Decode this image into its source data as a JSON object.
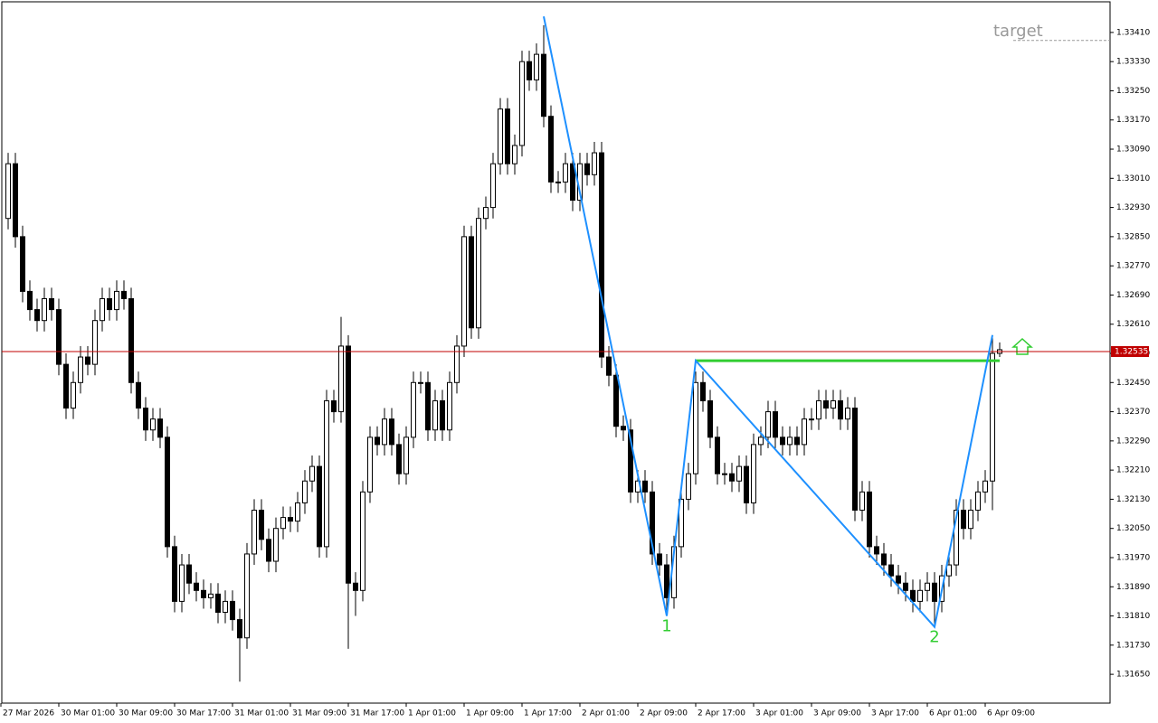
{
  "chart_data": {
    "type": "candlestick",
    "open": [
      1.329,
      1.3305,
      1.3285,
      1.327,
      1.3265,
      1.3262,
      1.3268,
      1.3265,
      1.325,
      1.3238,
      1.3245,
      1.3252,
      1.325,
      1.3262,
      1.3268,
      1.3265,
      1.327,
      1.3268,
      1.3245,
      1.3238,
      1.3232,
      1.3235,
      1.323,
      1.32,
      1.3185,
      1.3195,
      1.319,
      1.3188,
      1.3186,
      1.3187,
      1.3182,
      1.3185,
      1.318,
      1.3175,
      1.3198,
      1.321,
      1.3202,
      1.3196,
      1.3205,
      1.3208,
      1.3207,
      1.3212,
      1.3218,
      1.3222,
      1.32,
      1.324,
      1.3237,
      1.3255,
      1.319,
      1.3188,
      1.3215,
      1.323,
      1.3228,
      1.3235,
      1.3228,
      1.322,
      1.323,
      1.3245,
      1.3245,
      1.3232,
      1.324,
      1.3232,
      1.3245,
      1.3255,
      1.3285,
      1.326,
      1.329,
      1.3293,
      1.3305,
      1.332,
      1.3305,
      1.331,
      1.3333,
      1.3328,
      1.3335,
      1.3318,
      1.33,
      1.33,
      1.3305,
      1.3295,
      1.3305,
      1.3302,
      1.3308,
      1.3252,
      1.3247,
      1.3233,
      1.3232,
      1.3215,
      1.3218,
      1.3215,
      1.3198,
      1.3195,
      1.3186,
      1.32,
      1.3213,
      1.322,
      1.3245,
      1.324,
      1.323,
      1.322,
      1.322,
      1.3218,
      1.3222,
      1.3212,
      1.3228,
      1.323,
      1.3237,
      1.323,
      1.3228,
      1.323,
      1.3228,
      1.3235,
      1.3235,
      1.324,
      1.3238,
      1.324,
      1.3235,
      1.3238,
      1.321,
      1.3215,
      1.32,
      1.3198,
      1.3195,
      1.3192,
      1.319,
      1.3188,
      1.3185,
      1.3188,
      1.319,
      1.3185,
      1.3192,
      1.3195,
      1.321,
      1.3205,
      1.321,
      1.3215,
      1.3218,
      1.3253
    ],
    "high": [
      1.3308,
      1.3308,
      1.3288,
      1.3273,
      1.3268,
      1.3271,
      1.3271,
      1.3268,
      1.3253,
      1.3248,
      1.3255,
      1.3255,
      1.3265,
      1.3271,
      1.3271,
      1.3273,
      1.3273,
      1.3271,
      1.3248,
      1.3241,
      1.3238,
      1.3238,
      1.3233,
      1.3203,
      1.3198,
      1.3198,
      1.3193,
      1.3191,
      1.319,
      1.319,
      1.3188,
      1.3188,
      1.3183,
      1.3201,
      1.3213,
      1.3213,
      1.3205,
      1.3208,
      1.3211,
      1.3211,
      1.3215,
      1.3221,
      1.3225,
      1.3225,
      1.3243,
      1.3243,
      1.3263,
      1.3258,
      1.3193,
      1.3218,
      1.3233,
      1.3233,
      1.3238,
      1.3238,
      1.3231,
      1.3233,
      1.3248,
      1.3248,
      1.3248,
      1.3243,
      1.3243,
      1.3248,
      1.3258,
      1.3288,
      1.3288,
      1.3293,
      1.3296,
      1.3308,
      1.3323,
      1.3323,
      1.3313,
      1.3336,
      1.3336,
      1.3338,
      1.3343,
      1.3321,
      1.3303,
      1.3308,
      1.3308,
      1.3308,
      1.3308,
      1.3311,
      1.3311,
      1.3255,
      1.325,
      1.3236,
      1.3235,
      1.3221,
      1.3221,
      1.3218,
      1.3201,
      1.3198,
      1.3203,
      1.3216,
      1.3223,
      1.3248,
      1.3248,
      1.3243,
      1.3233,
      1.3223,
      1.3223,
      1.3225,
      1.3225,
      1.3231,
      1.3233,
      1.324,
      1.324,
      1.3233,
      1.3233,
      1.3233,
      1.3238,
      1.3238,
      1.3243,
      1.3243,
      1.3243,
      1.3243,
      1.3241,
      1.3241,
      1.3218,
      1.3218,
      1.3203,
      1.3201,
      1.3198,
      1.3195,
      1.3193,
      1.3191,
      1.3191,
      1.3193,
      1.3193,
      1.3195,
      1.3198,
      1.3213,
      1.3213,
      1.3213,
      1.3218,
      1.3221,
      1.3258,
      1.3256
    ],
    "low": [
      1.3287,
      1.3282,
      1.3267,
      1.3262,
      1.3259,
      1.3259,
      1.3262,
      1.3247,
      1.3235,
      1.3235,
      1.3242,
      1.3247,
      1.3247,
      1.3259,
      1.3262,
      1.3262,
      1.3265,
      1.3242,
      1.3235,
      1.3229,
      1.3229,
      1.3227,
      1.3197,
      1.3182,
      1.3182,
      1.3187,
      1.3185,
      1.3183,
      1.3183,
      1.3179,
      1.3179,
      1.3177,
      1.3163,
      1.3172,
      1.3195,
      1.3199,
      1.3193,
      1.3193,
      1.3202,
      1.3204,
      1.3204,
      1.3209,
      1.3215,
      1.3197,
      1.3197,
      1.3234,
      1.3234,
      1.3172,
      1.3181,
      1.3185,
      1.3212,
      1.3225,
      1.3225,
      1.3225,
      1.3217,
      1.3217,
      1.3227,
      1.3242,
      1.3229,
      1.3229,
      1.3229,
      1.3229,
      1.3242,
      1.3252,
      1.3257,
      1.3257,
      1.3287,
      1.329,
      1.3302,
      1.3302,
      1.3302,
      1.3307,
      1.3325,
      1.3325,
      1.3315,
      1.3297,
      1.3297,
      1.3297,
      1.3292,
      1.3292,
      1.3299,
      1.3299,
      1.3249,
      1.3244,
      1.323,
      1.3229,
      1.3212,
      1.3212,
      1.3212,
      1.3195,
      1.3192,
      1.3181,
      1.3183,
      1.3197,
      1.321,
      1.3217,
      1.3237,
      1.3227,
      1.3217,
      1.3217,
      1.3215,
      1.3215,
      1.3209,
      1.3209,
      1.3225,
      1.3227,
      1.3227,
      1.3225,
      1.3225,
      1.3225,
      1.3225,
      1.3232,
      1.3232,
      1.3235,
      1.3235,
      1.3232,
      1.3232,
      1.3207,
      1.3207,
      1.3197,
      1.3195,
      1.3192,
      1.3189,
      1.3187,
      1.3185,
      1.3182,
      1.3182,
      1.3185,
      1.3178,
      1.3182,
      1.3189,
      1.3192,
      1.3202,
      1.3202,
      1.3207,
      1.3212,
      1.321,
      1.3252
    ],
    "close": [
      1.3305,
      1.3285,
      1.327,
      1.3265,
      1.3262,
      1.3268,
      1.3265,
      1.325,
      1.3238,
      1.3245,
      1.3252,
      1.325,
      1.3262,
      1.3268,
      1.3265,
      1.327,
      1.3268,
      1.3245,
      1.3238,
      1.3232,
      1.3235,
      1.323,
      1.32,
      1.3185,
      1.3195,
      1.319,
      1.3188,
      1.3186,
      1.3187,
      1.3182,
      1.3185,
      1.318,
      1.3175,
      1.3198,
      1.321,
      1.3202,
      1.3196,
      1.3205,
      1.3208,
      1.3207,
      1.3212,
      1.3218,
      1.3222,
      1.32,
      1.324,
      1.3237,
      1.3255,
      1.319,
      1.3188,
      1.3215,
      1.323,
      1.3228,
      1.3235,
      1.3228,
      1.322,
      1.323,
      1.3245,
      1.3245,
      1.3232,
      1.324,
      1.3232,
      1.3245,
      1.3255,
      1.3285,
      1.326,
      1.329,
      1.3293,
      1.3305,
      1.332,
      1.3305,
      1.331,
      1.3333,
      1.3328,
      1.3335,
      1.3318,
      1.33,
      1.33,
      1.3305,
      1.3295,
      1.3305,
      1.3302,
      1.3308,
      1.3252,
      1.3247,
      1.3233,
      1.3232,
      1.3215,
      1.3218,
      1.3215,
      1.3198,
      1.3195,
      1.3186,
      1.32,
      1.3213,
      1.322,
      1.3245,
      1.324,
      1.323,
      1.322,
      1.322,
      1.3218,
      1.3222,
      1.3212,
      1.3228,
      1.323,
      1.3237,
      1.323,
      1.3228,
      1.323,
      1.3228,
      1.3235,
      1.3235,
      1.324,
      1.3238,
      1.324,
      1.3235,
      1.3238,
      1.321,
      1.3215,
      1.32,
      1.3198,
      1.3195,
      1.3192,
      1.319,
      1.3188,
      1.3185,
      1.3188,
      1.319,
      1.3185,
      1.3192,
      1.3195,
      1.321,
      1.3205,
      1.321,
      1.3215,
      1.3218,
      1.3253,
      1.3254
    ],
    "x_labels": [
      "27 Mar 2026",
      "30 Mar 01:00",
      "30 Mar 09:00",
      "30 Mar 17:00",
      "31 Mar 01:00",
      "31 Mar 09:00",
      "31 Mar 17:00",
      "1 Apr 01:00",
      "1 Apr 09:00",
      "1 Apr 17:00",
      "2 Apr 01:00",
      "2 Apr 09:00",
      "2 Apr 17:00",
      "3 Apr 01:00",
      "3 Apr 09:00",
      "3 Apr 17:00",
      "6 Apr 01:00",
      "6 Apr 09:00"
    ],
    "ylim": [
      1.31571,
      1.33494
    ],
    "yticks": [
      {
        "value": 1.3341,
        "label": "1.33410"
      },
      {
        "value": 1.3333,
        "label": "1.33330"
      },
      {
        "value": 1.3325,
        "label": "1.33250"
      },
      {
        "value": 1.3317,
        "label": "1.33170"
      },
      {
        "value": 1.3309,
        "label": "1.33090"
      },
      {
        "value": 1.3301,
        "label": "1.33010"
      },
      {
        "value": 1.3293,
        "label": "1.32930"
      },
      {
        "value": 1.3285,
        "label": "1.32850"
      },
      {
        "value": 1.3277,
        "label": "1.32770"
      },
      {
        "value": 1.3269,
        "label": "1.32690"
      },
      {
        "value": 1.3261,
        "label": "1.32610"
      },
      {
        "value": 1.3253,
        "label": "1.32530"
      },
      {
        "value": 1.3245,
        "label": "1.32450"
      },
      {
        "value": 1.3237,
        "label": "1.32370"
      },
      {
        "value": 1.3229,
        "label": "1.32290"
      },
      {
        "value": 1.3221,
        "label": "1.32210"
      },
      {
        "value": 1.3213,
        "label": "1.32130"
      },
      {
        "value": 1.3205,
        "label": "1.32050"
      },
      {
        "value": 1.3197,
        "label": "1.31970"
      },
      {
        "value": 1.3189,
        "label": "1.31890"
      },
      {
        "value": 1.3181,
        "label": "1.31810"
      },
      {
        "value": 1.3173,
        "label": "1.31730"
      },
      {
        "value": 1.3165,
        "label": "1.31650"
      }
    ],
    "current_price": 1.32535,
    "zigzag": {
      "bars": [
        74,
        91,
        95,
        128,
        136
      ],
      "prices": [
        1.33454,
        1.3181,
        1.3251,
        1.3178,
        1.3258
      ],
      "color": "#1e90ff"
    },
    "pattern_labels": [
      "1",
      "2"
    ],
    "breakout_level": {
      "price": 1.3251,
      "bars": [
        95,
        137
      ],
      "color": "#32cd32"
    },
    "target": {
      "label": "target",
      "price": 1.33388
    }
  }
}
